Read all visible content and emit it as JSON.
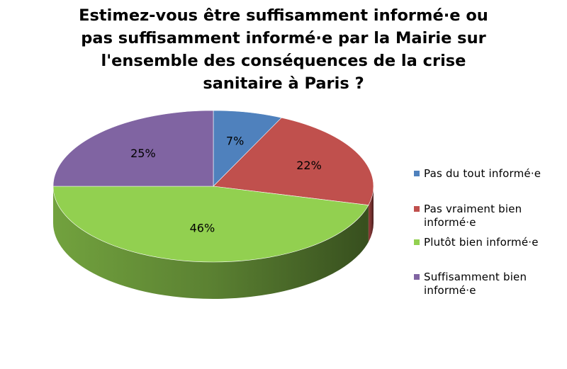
{
  "chart_data": {
    "type": "pie",
    "title": "Estimez-vous être suffisamment informé·e ou pas suffisamment informé·e par la Mairie sur l'ensemble des conséquences de la crise sanitaire à Paris ?",
    "title_lines": [
      "Estimez-vous être suffisamment informé·e ou",
      "pas suffisamment informé·e par la Mairie sur",
      "l'ensemble des conséquences de la crise",
      "sanitaire à Paris ?"
    ],
    "categories": [
      "Pas du tout informé·e",
      "Pas vraiment bien informé·e",
      "Plutôt bien informé·e",
      "Suffisamment bien informé·e"
    ],
    "values": [
      7,
      22,
      46,
      25
    ],
    "data_labels": [
      "7%",
      "22%",
      "46%",
      "25%"
    ],
    "colors": [
      "#4F81BD",
      "#C0504D",
      "#92D050",
      "#8064A2"
    ],
    "legend_position": "right",
    "style": "3d"
  }
}
